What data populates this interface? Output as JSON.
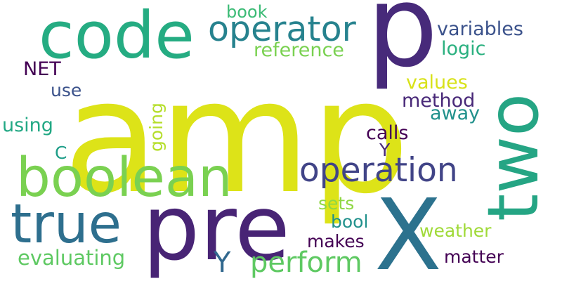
{
  "words": [
    {
      "text": "amp",
      "color": "#dde318"
    },
    {
      "text": "p",
      "color": "#472a7a"
    },
    {
      "text": "pre",
      "color": "#482475"
    },
    {
      "text": "X",
      "color": "#2c728e"
    },
    {
      "text": "two",
      "color": "#25a584"
    },
    {
      "text": "code",
      "color": "#25ac82"
    },
    {
      "text": "boolean",
      "color": "#7ad151"
    },
    {
      "text": "true",
      "color": "#2e6f8e"
    },
    {
      "text": "operator",
      "color": "#26828e"
    },
    {
      "text": "operation",
      "color": "#414487"
    },
    {
      "text": "perform",
      "color": "#5ec962"
    },
    {
      "text": "evaluating",
      "color": "#5ec962"
    },
    {
      "text": "reference",
      "color": "#7ad151"
    },
    {
      "text": "variables",
      "color": "#3b528b"
    },
    {
      "text": "logic",
      "color": "#2ab07f"
    },
    {
      "text": "values",
      "color": "#d8e219"
    },
    {
      "text": "method",
      "color": "#482878"
    },
    {
      "text": "away",
      "color": "#21918c"
    },
    {
      "text": "calls",
      "color": "#440154"
    },
    {
      "text": "book",
      "color": "#3bbb75"
    },
    {
      "text": "NET",
      "color": "#440154"
    },
    {
      "text": "use",
      "color": "#3b528b"
    },
    {
      "text": "using",
      "color": "#22a884"
    },
    {
      "text": "going",
      "color": "#b5de2b"
    },
    {
      "text": "C",
      "color": "#1f9e89"
    },
    {
      "text": "Y",
      "color": "#31688e"
    },
    {
      "text": "Y",
      "color": "#482878"
    },
    {
      "text": "sets",
      "color": "#8fd744"
    },
    {
      "text": "bool",
      "color": "#21918c"
    },
    {
      "text": "makes",
      "color": "#440154"
    },
    {
      "text": "weather",
      "color": "#a0da39"
    },
    {
      "text": "matter",
      "color": "#440154"
    }
  ]
}
